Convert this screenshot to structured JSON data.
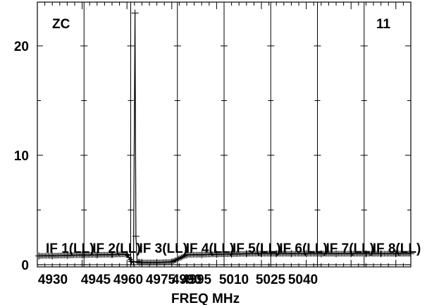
{
  "chart_data": {
    "type": "line",
    "title_left": "ZC",
    "title_right": "11",
    "xlabel": "FREQ MHz",
    "ylabel": "",
    "xlim": [
      4930,
      5055
    ],
    "ylim": [
      -0.2,
      24
    ],
    "x_tick_labels": [
      "4930",
      "4945",
      "4960",
      "4975",
      "4990",
      "4995",
      "5010",
      "5025",
      "5040"
    ],
    "y_ticks": [
      0,
      10,
      20
    ],
    "if_labels": [
      "IF 1(LL)",
      "IF 2(LL)",
      "IF 3(LL)",
      "IF 4(LL)",
      "IF 5(LL)",
      "IF 6(LL)",
      "IF 7(LL)",
      "IF 8(LL)"
    ],
    "grid": true,
    "series": [
      {
        "x": [
          4930.5,
          4935,
          4940,
          4945,
          4950,
          4955,
          4960,
          4961.5,
          4962.2,
          4962.7,
          4963.0,
          4963.4,
          4964.2,
          4965,
          4970,
          4975,
          4980,
          4985,
          4990,
          4995,
          5000,
          5005,
          5010,
          5015,
          5020,
          5025,
          5030,
          5035,
          5040,
          5045,
          5050,
          5055
        ],
        "y": [
          0.8,
          0.82,
          0.85,
          0.88,
          0.9,
          0.92,
          0.95,
          0.3,
          0.2,
          23.0,
          2.6,
          0.3,
          0.2,
          0.2,
          0.2,
          0.25,
          0.9,
          0.92,
          0.95,
          0.97,
          1.0,
          1.0,
          1.0,
          1.0,
          1.0,
          1.0,
          1.0,
          1.0,
          1.0,
          1.0,
          1.0,
          1.0
        ]
      }
    ]
  }
}
